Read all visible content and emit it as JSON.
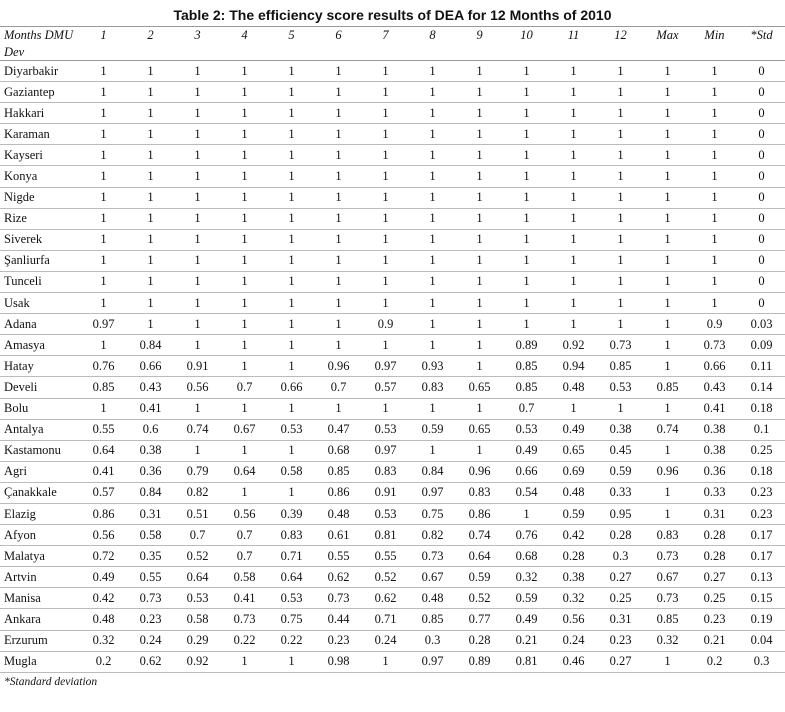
{
  "title": "Table 2: The efficiency score results of DEA for 12 Months of 2010",
  "table": {
    "header": [
      "Months DMU",
      "1",
      "2",
      "3",
      "4",
      "5",
      "6",
      "7",
      "8",
      "9",
      "10",
      "11",
      "12",
      "Max",
      "Min",
      "*Std"
    ],
    "header_line2": "Dev",
    "rows": [
      [
        "Diyarbakir",
        1,
        1,
        1,
        1,
        1,
        1,
        1,
        1,
        1,
        1,
        1,
        1,
        1,
        1,
        0
      ],
      [
        "Gaziantep",
        1,
        1,
        1,
        1,
        1,
        1,
        1,
        1,
        1,
        1,
        1,
        1,
        1,
        1,
        0
      ],
      [
        "Hakkari",
        1,
        1,
        1,
        1,
        1,
        1,
        1,
        1,
        1,
        1,
        1,
        1,
        1,
        1,
        0
      ],
      [
        "Karaman",
        1,
        1,
        1,
        1,
        1,
        1,
        1,
        1,
        1,
        1,
        1,
        1,
        1,
        1,
        0
      ],
      [
        "Kayseri",
        1,
        1,
        1,
        1,
        1,
        1,
        1,
        1,
        1,
        1,
        1,
        1,
        1,
        1,
        0
      ],
      [
        "Konya",
        1,
        1,
        1,
        1,
        1,
        1,
        1,
        1,
        1,
        1,
        1,
        1,
        1,
        1,
        0
      ],
      [
        "Nigde",
        1,
        1,
        1,
        1,
        1,
        1,
        1,
        1,
        1,
        1,
        1,
        1,
        1,
        1,
        0
      ],
      [
        "Rize",
        1,
        1,
        1,
        1,
        1,
        1,
        1,
        1,
        1,
        1,
        1,
        1,
        1,
        1,
        0
      ],
      [
        "Siverek",
        1,
        1,
        1,
        1,
        1,
        1,
        1,
        1,
        1,
        1,
        1,
        1,
        1,
        1,
        0
      ],
      [
        "Şanliurfa",
        1,
        1,
        1,
        1,
        1,
        1,
        1,
        1,
        1,
        1,
        1,
        1,
        1,
        1,
        0
      ],
      [
        "Tunceli",
        1,
        1,
        1,
        1,
        1,
        1,
        1,
        1,
        1,
        1,
        1,
        1,
        1,
        1,
        0
      ],
      [
        "Usak",
        1,
        1,
        1,
        1,
        1,
        1,
        1,
        1,
        1,
        1,
        1,
        1,
        1,
        1,
        0
      ],
      [
        "Adana",
        0.97,
        1,
        1,
        1,
        1,
        1,
        0.9,
        1,
        1,
        1,
        1,
        1,
        1,
        0.9,
        0.03
      ],
      [
        "Amasya",
        1,
        0.84,
        1,
        1,
        1,
        1,
        1,
        1,
        1,
        0.89,
        0.92,
        0.73,
        1,
        0.73,
        0.09
      ],
      [
        "Hatay",
        0.76,
        0.66,
        0.91,
        1,
        1,
        0.96,
        0.97,
        0.93,
        1,
        0.85,
        0.94,
        0.85,
        1,
        0.66,
        0.11
      ],
      [
        "Develi",
        0.85,
        0.43,
        0.56,
        0.7,
        0.66,
        0.7,
        0.57,
        0.83,
        0.65,
        0.85,
        0.48,
        0.53,
        0.85,
        0.43,
        0.14
      ],
      [
        "Bolu",
        1,
        0.41,
        1,
        1,
        1,
        1,
        1,
        1,
        1,
        0.7,
        1,
        1,
        1,
        0.41,
        0.18
      ],
      [
        "Antalya",
        0.55,
        0.6,
        0.74,
        0.67,
        0.53,
        0.47,
        0.53,
        0.59,
        0.65,
        0.53,
        0.49,
        0.38,
        0.74,
        0.38,
        0.1
      ],
      [
        "Kastamonu",
        0.64,
        0.38,
        1,
        1,
        1,
        0.68,
        0.97,
        1,
        1,
        0.49,
        0.65,
        0.45,
        1,
        0.38,
        0.25
      ],
      [
        "Agri",
        0.41,
        0.36,
        0.79,
        0.64,
        0.58,
        0.85,
        0.83,
        0.84,
        0.96,
        0.66,
        0.69,
        0.59,
        0.96,
        0.36,
        0.18
      ],
      [
        "Çanakkale",
        0.57,
        0.84,
        0.82,
        1,
        1,
        0.86,
        0.91,
        0.97,
        0.83,
        0.54,
        0.48,
        0.33,
        1,
        0.33,
        0.23
      ],
      [
        "Elazig",
        0.86,
        0.31,
        0.51,
        0.56,
        0.39,
        0.48,
        0.53,
        0.75,
        0.86,
        1,
        0.59,
        0.95,
        1,
        0.31,
        0.23
      ],
      [
        "Afyon",
        0.56,
        0.58,
        0.7,
        0.7,
        0.83,
        0.61,
        0.81,
        0.82,
        0.74,
        0.76,
        0.42,
        0.28,
        0.83,
        0.28,
        0.17
      ],
      [
        "Malatya",
        0.72,
        0.35,
        0.52,
        0.7,
        0.71,
        0.55,
        0.55,
        0.73,
        0.64,
        0.68,
        0.28,
        0.3,
        0.73,
        0.28,
        0.17
      ],
      [
        "Artvin",
        0.49,
        0.55,
        0.64,
        0.58,
        0.64,
        0.62,
        0.52,
        0.67,
        0.59,
        0.32,
        0.38,
        0.27,
        0.67,
        0.27,
        0.13
      ],
      [
        "Manisa",
        0.42,
        0.73,
        0.53,
        0.41,
        0.53,
        0.73,
        0.62,
        0.48,
        0.52,
        0.59,
        0.32,
        0.25,
        0.73,
        0.25,
        0.15
      ],
      [
        "Ankara",
        0.48,
        0.23,
        0.58,
        0.73,
        0.75,
        0.44,
        0.71,
        0.85,
        0.77,
        0.49,
        0.56,
        0.31,
        0.85,
        0.23,
        0.19
      ],
      [
        "Erzurum",
        0.32,
        0.24,
        0.29,
        0.22,
        0.22,
        0.23,
        0.24,
        0.3,
        0.28,
        0.21,
        0.24,
        0.23,
        0.32,
        0.21,
        0.04
      ],
      [
        "Mugla",
        0.2,
        0.62,
        0.92,
        1,
        1,
        0.98,
        1,
        0.97,
        0.89,
        0.81,
        0.46,
        0.27,
        1,
        0.2,
        0.3
      ]
    ],
    "footnote": "*Standard deviation"
  }
}
